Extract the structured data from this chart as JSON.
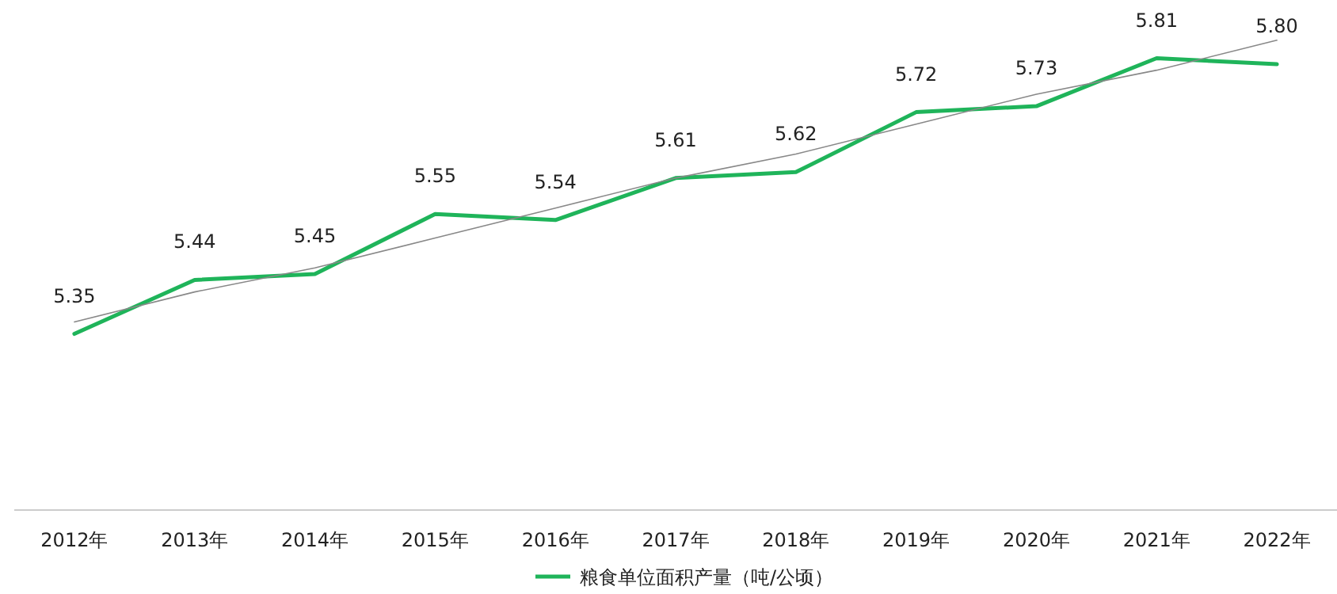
{
  "chart_data": {
    "type": "line",
    "categories": [
      "2012年",
      "2013年",
      "2014年",
      "2015年",
      "2016年",
      "2017年",
      "2018年",
      "2019年",
      "2020年",
      "2021年",
      "2022年"
    ],
    "series": [
      {
        "name": "粮食单位面积产量（吨/公顷）",
        "color": "#1fb45a",
        "values": [
          5.35,
          5.44,
          5.45,
          5.55,
          5.54,
          5.61,
          5.62,
          5.72,
          5.73,
          5.81,
          5.8
        ],
        "value_labels": [
          "5.35",
          "5.44",
          "5.45",
          "5.55",
          "5.54",
          "5.61",
          "5.62",
          "5.72",
          "5.73",
          "5.81",
          "5.80"
        ]
      },
      {
        "type": "line",
        "color": "#888888",
        "values": [
          5.37,
          5.42,
          5.46,
          5.51,
          5.56,
          5.61,
          5.65,
          5.7,
          5.75,
          5.79,
          5.84
        ]
      }
    ],
    "legend": "bottom",
    "grid": false
  }
}
